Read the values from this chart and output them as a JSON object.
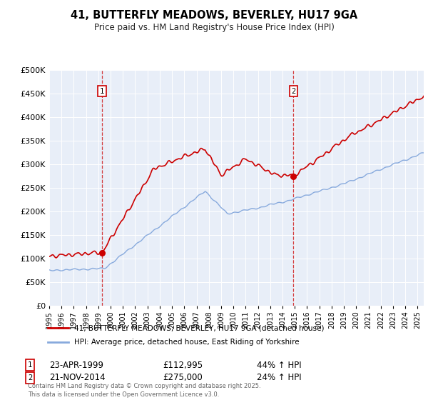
{
  "title": "41, BUTTERFLY MEADOWS, BEVERLEY, HU17 9GA",
  "subtitle": "Price paid vs. HM Land Registry's House Price Index (HPI)",
  "background_color": "#ffffff",
  "plot_bg_color": "#e8eef8",
  "legend_line1": "41, BUTTERFLY MEADOWS, BEVERLEY, HU17 9GA (detached house)",
  "legend_line2": "HPI: Average price, detached house, East Riding of Yorkshire",
  "annotation1_label": "1",
  "annotation1_date": "23-APR-1999",
  "annotation1_price": "£112,995",
  "annotation1_hpi": "44% ↑ HPI",
  "annotation1_year": 1999.31,
  "annotation1_value": 112995,
  "annotation2_label": "2",
  "annotation2_date": "21-NOV-2014",
  "annotation2_price": "£275,000",
  "annotation2_hpi": "24% ↑ HPI",
  "annotation2_year": 2014.89,
  "annotation2_value": 275000,
  "footer": "Contains HM Land Registry data © Crown copyright and database right 2025.\nThis data is licensed under the Open Government Licence v3.0.",
  "red_color": "#cc0000",
  "blue_color": "#88aadd",
  "ylim": [
    0,
    500000
  ],
  "xlim_start": 1995.0,
  "xlim_end": 2025.5
}
